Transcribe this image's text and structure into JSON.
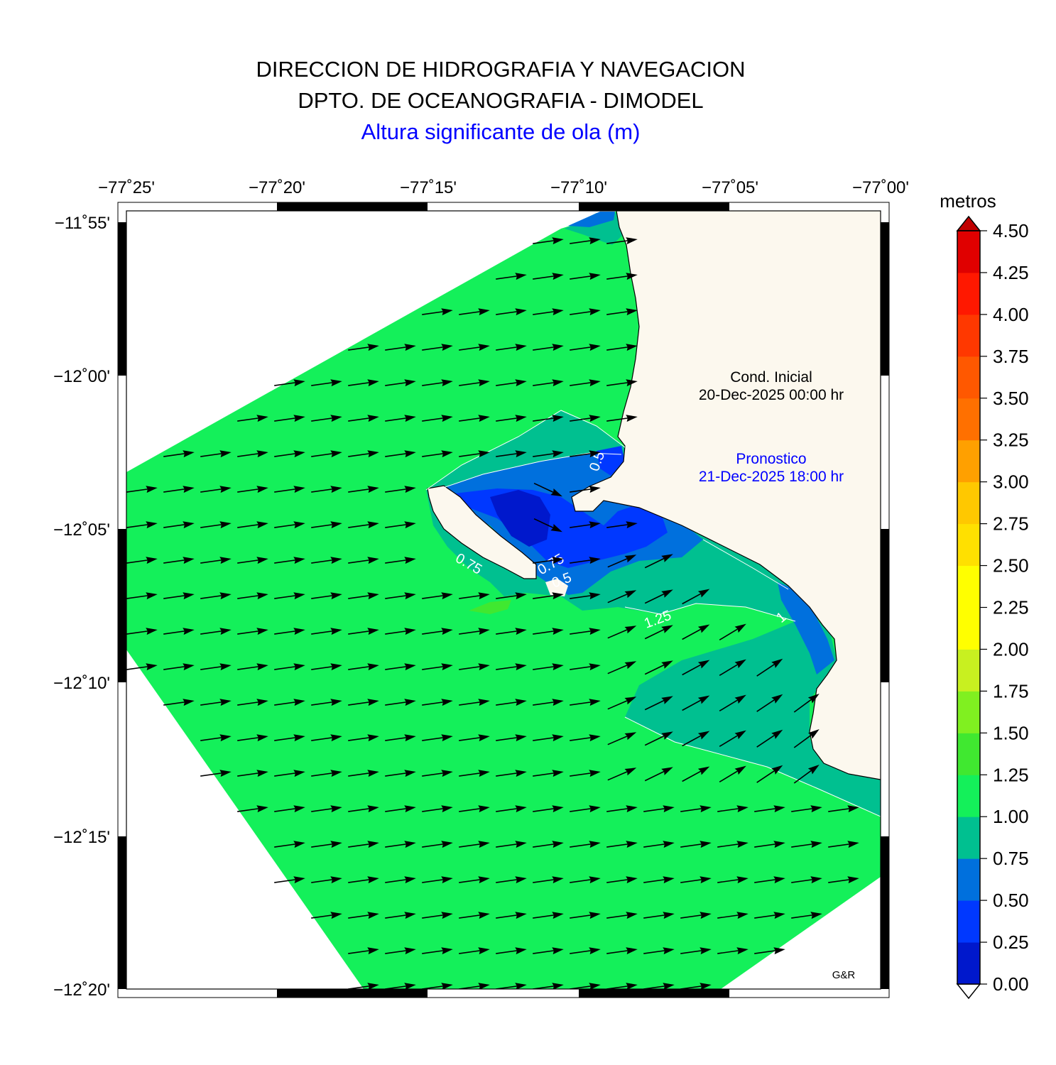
{
  "header": {
    "line1": "DIRECCION DE HIDROGRAFIA Y NAVEGACION",
    "line2": "DPTO. DE OCEANOGRAFIA - DIMODEL",
    "line3": "Altura significante de ola (m)"
  },
  "axes": {
    "lon_labels": [
      "−77˚25'",
      "−77˚20'",
      "−77˚15'",
      "−77˚10'",
      "−77˚05'",
      "−77˚00'"
    ],
    "lat_labels": [
      "−11˚55'",
      "−12˚00'",
      "−12˚05'",
      "−12˚10'",
      "−12˚15'",
      "−12˚20'"
    ]
  },
  "annotations": {
    "initial_label": "Cond. Inicial",
    "initial_time": "20-Dec-2025 00:00 hr",
    "forecast_label": "Pronostico",
    "forecast_time": "21-Dec-2025 18:00 hr",
    "credit": "G&R"
  },
  "contour_labels": [
    "0.5",
    "0.75",
    "1",
    "1.25",
    "0.5",
    "0.75"
  ],
  "colorbar": {
    "unit": "metros",
    "ticks": [
      "4.50",
      "4.25",
      "4.00",
      "3.75",
      "3.50",
      "3.25",
      "3.00",
      "2.75",
      "2.50",
      "2.25",
      "2.00",
      "1.75",
      "1.50",
      "1.25",
      "1.00",
      "0.75",
      "0.50",
      "0.25",
      "0.00"
    ],
    "colors": [
      "#0018cc",
      "#0038ff",
      "#0070dd",
      "#00c090",
      "#14f05a",
      "#40e830",
      "#80f020",
      "#c8f020",
      "#ffff00",
      "#ffff00",
      "#ffe000",
      "#ffc800",
      "#ffa000",
      "#ff7000",
      "#ff5800",
      "#ff3800",
      "#ff1800",
      "#e00000",
      "#c00000"
    ]
  },
  "colors": {
    "land": "#fcf8ee",
    "sea_1_00_1_25": "#14f05a",
    "sea_0_75_1_00": "#00c090",
    "sea_0_50_0_75": "#0070dd",
    "sea_0_25_0_50": "#0038ff",
    "sea_0_00_0_25": "#0018cc"
  }
}
